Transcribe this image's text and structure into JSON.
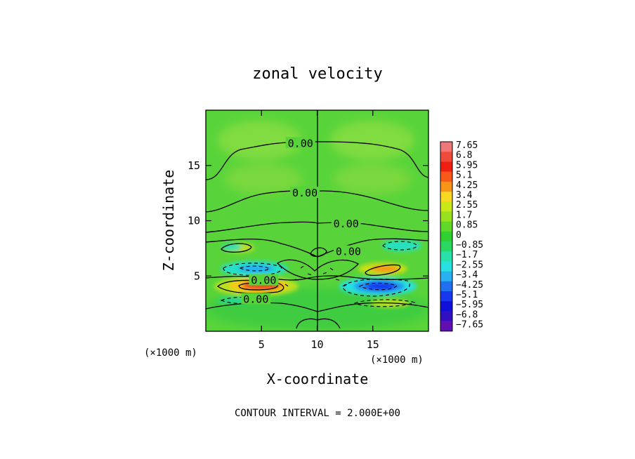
{
  "chart_data": {
    "type": "heatmap",
    "title": "zonal velocity",
    "xlabel": "X-coordinate",
    "ylabel": "Z-coordinate",
    "x_unit_left": "(×1000 m)",
    "x_unit_right": "(×1000 m)",
    "xlim": [
      0,
      20
    ],
    "ylim": [
      0,
      20
    ],
    "x_ticks": [
      5,
      10,
      15
    ],
    "y_ticks": [
      5,
      10,
      15
    ],
    "x_tick_labels": [
      "5",
      "10",
      "15"
    ],
    "y_tick_labels": [
      "5",
      "10",
      "15"
    ],
    "footer": "CONTOUR INTERVAL = 2.000E+00",
    "contour_interval": 2.0,
    "contour_labels": [
      {
        "text": "0.00",
        "x": 8.5,
        "z": 17.0
      },
      {
        "text": "0.00",
        "x": 8.9,
        "z": 12.5
      },
      {
        "text": "0.00",
        "x": 12.6,
        "z": 9.7
      },
      {
        "text": "0.00",
        "x": 12.8,
        "z": 7.2
      },
      {
        "text": "0.00",
        "x": 5.2,
        "z": 4.6
      },
      {
        "text": "0.00",
        "x": 4.5,
        "z": 2.9
      }
    ],
    "features": [
      {
        "sign": "positive",
        "x": 4.8,
        "z": 4.1,
        "peak": 5.5
      },
      {
        "sign": "positive",
        "x": 15.8,
        "z": 5.6,
        "peak": 4.0
      },
      {
        "sign": "negative",
        "x": 15.2,
        "z": 4.1,
        "peak": -4.5
      },
      {
        "sign": "negative",
        "x": 4.5,
        "z": 5.5,
        "peak": -3.0
      },
      {
        "sign": "negative",
        "x": 17.8,
        "z": 7.6,
        "peak": -2.0
      },
      {
        "sign": "negative",
        "x": 2.5,
        "z": 7.8,
        "peak": -1.5
      },
      {
        "sign": "positive",
        "x": 3.0,
        "z": 7.4,
        "peak": 2.0
      },
      {
        "sign": "positive",
        "x": 16.8,
        "z": 2.8,
        "peak": 1.5
      }
    ],
    "colorbar": {
      "labels": [
        "7.65",
        "6.8",
        "5.95",
        "5.1",
        "4.25",
        "3.4",
        "2.55",
        "1.7",
        "0.85",
        "0",
        "−0.85",
        "−1.7",
        "−2.55",
        "−3.4",
        "−4.25",
        "−5.1",
        "−5.95",
        "−6.8",
        "−7.65"
      ],
      "colors": [
        "#f07878",
        "#f04a3a",
        "#f02010",
        "#f85818",
        "#f89418",
        "#f8d820",
        "#c8e818",
        "#98e020",
        "#60d828",
        "#30d030",
        "#28d860",
        "#28e0a8",
        "#28e0e0",
        "#28b0f0",
        "#2070f0",
        "#1838f0",
        "#1010d8",
        "#3010c0",
        "#6010b0"
      ]
    }
  }
}
